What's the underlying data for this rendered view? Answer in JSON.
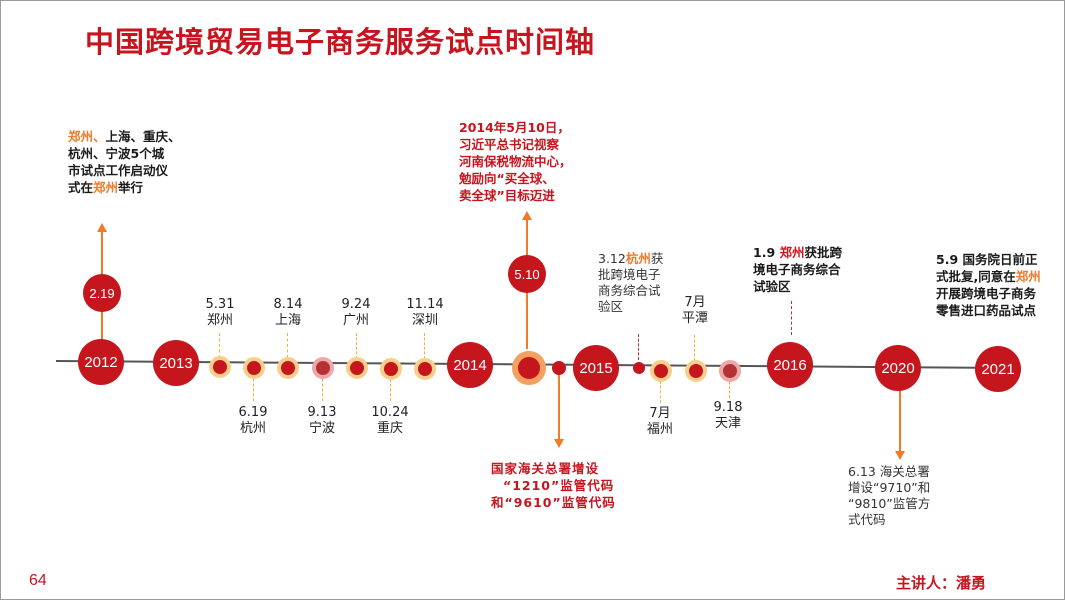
{
  "page": {
    "title": "中国跨境贸易电子商务服务试点时间轴",
    "page_number": "64",
    "speaker": "主讲人：潘勇"
  },
  "timeline": {
    "years": [
      "2012",
      "2013",
      "2014",
      "2015",
      "2016",
      "2020",
      "2021"
    ],
    "bubble_2012": "2.19",
    "bubble_2014": "5.10",
    "events_above": [
      {
        "date": "5.31",
        "place": "郑州"
      },
      {
        "date": "8.14",
        "place": "上海"
      },
      {
        "date": "9.24",
        "place": "广州"
      },
      {
        "date": "11.14",
        "place": "深圳"
      },
      {
        "date": "7月",
        "place": "平潭"
      }
    ],
    "events_below": [
      {
        "date": "6.19",
        "place": "杭州"
      },
      {
        "date": "9.13",
        "place": "宁波"
      },
      {
        "date": "10.24",
        "place": "重庆"
      },
      {
        "date": "7月",
        "place": "福州"
      },
      {
        "date": "9.18",
        "place": "天津"
      }
    ]
  },
  "notes": {
    "n2012_a": "郑州、",
    "n2012_b": "上海、重庆、",
    "n2012_c": "杭州、宁波5个城",
    "n2012_d": "市试点工作启动仪",
    "n2012_e": "式在",
    "n2012_f": "郑州",
    "n2012_g": "举行",
    "n2014": [
      "2014年5月10日，",
      "习近平总书记视察",
      "河南保税物流中心，",
      "勉励向“买全球、",
      "卖全球”目标迈进"
    ],
    "customs_2014": [
      "国家海关总署增设",
      "“1210”监管代码",
      "和“9610”监管代码"
    ],
    "hz_a": "3.12",
    "hz_b": "杭州",
    "hz_c": "获",
    "hz_rest": [
      "批跨境电子",
      "商务综合试",
      "验区"
    ],
    "zz_a": "1.9 ",
    "zz_b": "郑州",
    "zz_c": "获批跨",
    "zz_rest": [
      "境电子商务综合",
      "试验区"
    ],
    "n2020": [
      "6.13 海关总署",
      "增设“9710”和",
      "“9810”监管方",
      "式代码"
    ],
    "n2021_a": "5.9 国务院日前正",
    "n2021_b": "式批复,同意在",
    "n2021_c": "郑州",
    "n2021_rest": [
      "开展跨境电子商务",
      "零售进口药品试点"
    ]
  },
  "colors": {
    "accent": "#c8141e",
    "orange": "#ee7a2a",
    "dot_ring": "#f6cf8c"
  }
}
